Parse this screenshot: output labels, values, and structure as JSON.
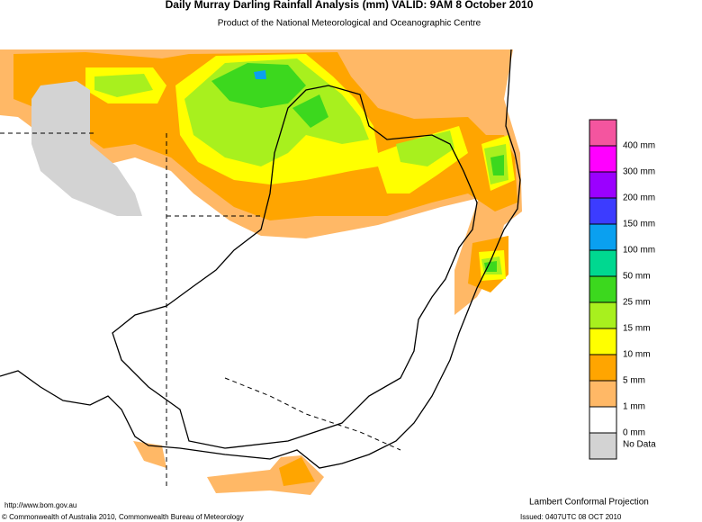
{
  "header": {
    "title": "Daily Murray Darling Rainfall Analysis (mm)  VALID: 9AM  8 October 2010",
    "subtitle": "Product of the National Meteorological and Oceanographic Centre"
  },
  "legend": {
    "items": [
      {
        "label": "400 mm",
        "color": "#f4559f"
      },
      {
        "label": "300 mm",
        "color": "#ff00ff"
      },
      {
        "label": "200 mm",
        "color": "#9b00ff"
      },
      {
        "label": "150 mm",
        "color": "#3c3cff"
      },
      {
        "label": "100 mm",
        "color": "#0aa0f0"
      },
      {
        "label": "50 mm",
        "color": "#00d890"
      },
      {
        "label": "25 mm",
        "color": "#3cd81e"
      },
      {
        "label": "15 mm",
        "color": "#a8f01e"
      },
      {
        "label": "10 mm",
        "color": "#ffff00"
      },
      {
        "label": "5 mm",
        "color": "#ffa500"
      },
      {
        "label": "1 mm",
        "color": "#ffb866"
      },
      {
        "label": "0 mm",
        "color": "#ffffff"
      },
      {
        "label": "No Data",
        "color": "#d3d3d3"
      }
    ]
  },
  "footer": {
    "url": "http://www.bom.gov.au",
    "projection": "Lambert Conformal Projection",
    "copyright": "© Commonwealth of Australia 2010, Commonwealth Bureau of Meteorology",
    "issued": "Issued: 0407UTC 08 OCT 2010"
  }
}
